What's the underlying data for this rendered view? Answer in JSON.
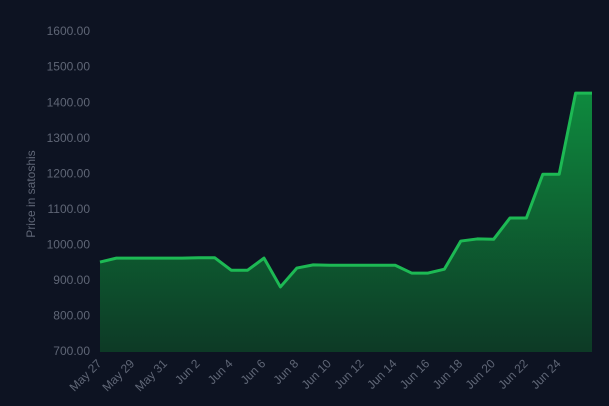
{
  "chart_data": {
    "type": "area",
    "y_label": "Price in satoshis",
    "categories": [
      "May 27",
      null,
      "May 29",
      null,
      "May 31",
      null,
      "Jun 2",
      null,
      "Jun 4",
      null,
      "Jun 6",
      null,
      "Jun 8",
      null,
      "Jun 10",
      null,
      "Jun 12",
      null,
      "Jun 14",
      null,
      "Jun 16",
      null,
      "Jun 18",
      null,
      "Jun 20",
      null,
      "Jun 22",
      null,
      "Jun 24",
      null,
      null
    ],
    "values": [
      953,
      964,
      964,
      964,
      964,
      964,
      965,
      965,
      930,
      930,
      964,
      883,
      936,
      945,
      944,
      944,
      944,
      944,
      944,
      922,
      922,
      933,
      1012,
      1018,
      1017,
      1077,
      1077,
      1200,
      1200,
      1428,
      1428
    ],
    "color": "#1db954",
    "ylim": [
      700,
      1600
    ],
    "yticks": [
      {
        "value": 700,
        "label": "700.00"
      },
      {
        "value": 800,
        "label": "800.00"
      },
      {
        "value": 900,
        "label": "900.00"
      },
      {
        "value": 1000,
        "label": "1000.00"
      },
      {
        "value": 1100,
        "label": "1100.00"
      },
      {
        "value": 1200,
        "label": "1200.00"
      },
      {
        "value": 1300,
        "label": "1300.00"
      },
      {
        "value": 1400,
        "label": "1400.00"
      },
      {
        "value": 1500,
        "label": "1500.00"
      },
      {
        "value": 1600,
        "label": "1600.00"
      }
    ]
  }
}
